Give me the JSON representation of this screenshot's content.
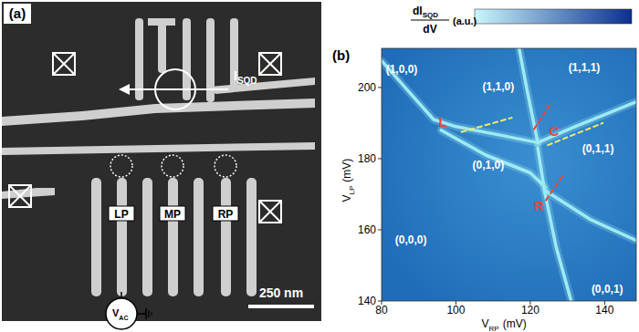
{
  "device_image": {
    "panel_label": "(a)",
    "gates": [
      {
        "label": "LP"
      },
      {
        "label": "MP"
      },
      {
        "label": "RP"
      }
    ],
    "current": {
      "main": "I",
      "sub": "SQD"
    },
    "scale_bar": "250 nm",
    "source": {
      "main": "V",
      "sub": "AC"
    }
  },
  "chart_data": {
    "type": "line",
    "panel_label": "(b)",
    "x_label": {
      "main": "V",
      "sub": "RP",
      "unit": "(mV)"
    },
    "y_label": {
      "main": "V",
      "sub": "LP",
      "unit": "(mV)"
    },
    "colorbar": {
      "numerator": {
        "main": "dI",
        "sub": "SQD"
      },
      "denominator": "dV",
      "unit": "(a.u.)",
      "colors": [
        "#c8f6fc",
        "#0b2f8f"
      ]
    },
    "xlim": [
      80,
      148.5
    ],
    "ylim": [
      140,
      211
    ],
    "xticks": [
      80,
      100,
      120,
      140
    ],
    "yticks": [
      140,
      160,
      180,
      200
    ],
    "series": [
      {
        "color": "#9eeaf3",
        "line_style": "solid",
        "x": [
          80,
          88,
          94,
          100,
          110,
          122
        ],
        "values": [
          207.5,
          198,
          191,
          189,
          187,
          184.5
        ]
      },
      {
        "color": "#9eeaf3",
        "line_style": "solid",
        "x": [
          122,
          132,
          148.5
        ],
        "values": [
          184.5,
          189,
          196
        ]
      },
      {
        "color": "#9eeaf3",
        "line_style": "solid",
        "x": [
          117,
          119,
          122
        ],
        "values": [
          211,
          200,
          184.5
        ]
      },
      {
        "color": "#9eeaf3",
        "line_style": "solid",
        "x": [
          122,
          124,
          127,
          131
        ],
        "values": [
          183,
          170,
          155,
          140
        ]
      },
      {
        "color": "#9eeaf3",
        "line_style": "solid",
        "x": [
          96,
          108,
          120,
          124
        ],
        "values": [
          188,
          181,
          176,
          172
        ]
      },
      {
        "color": "#9eeaf3",
        "line_style": "solid",
        "x": [
          124,
          136,
          148.5
        ],
        "values": [
          171,
          163,
          157
        ]
      },
      {
        "color": "#f2e86a",
        "line_style": "dashed",
        "x": [
          101.5,
          115
        ],
        "values": [
          187.5,
          191.5
        ]
      },
      {
        "color": "#f2e86a",
        "line_style": "dashed",
        "x": [
          124.7,
          139.5
        ],
        "values": [
          183.8,
          190
        ]
      },
      {
        "color": "#e8463c",
        "line_style": "dashed",
        "x": [
          121,
          125.2
        ],
        "values": [
          188.3,
          195
        ]
      },
      {
        "color": "#e8463c",
        "line_style": "dashed",
        "x": [
          124.2,
          129.1
        ],
        "values": [
          168.3,
          175.8
        ]
      }
    ],
    "annotations": [
      {
        "text": "(1,0,0)",
        "x": 85.4,
        "y": 205,
        "color": "#ffffff"
      },
      {
        "text": "(1,1,0)",
        "x": 111.4,
        "y": 200,
        "color": "#ffffff"
      },
      {
        "text": "(1,1,1)",
        "x": 134.5,
        "y": 205.5,
        "color": "#ffffff"
      },
      {
        "text": "(0,1,0)",
        "x": 108.7,
        "y": 178,
        "color": "#ffffff"
      },
      {
        "text": "(0,1,1)",
        "x": 138.2,
        "y": 182.5,
        "color": "#ffffff"
      },
      {
        "text": "(0,0,0)",
        "x": 87.9,
        "y": 157,
        "color": "#ffffff"
      },
      {
        "text": "(0,0,1)",
        "x": 140.7,
        "y": 143,
        "color": "#ffffff"
      },
      {
        "text": "L",
        "x": 96.5,
        "y": 190,
        "color": "#e8463c"
      },
      {
        "text": "C",
        "x": 126.4,
        "y": 187.5,
        "color": "#e8463c"
      },
      {
        "text": "R",
        "x": 122.3,
        "y": 166.5,
        "color": "#e8463c"
      }
    ]
  }
}
